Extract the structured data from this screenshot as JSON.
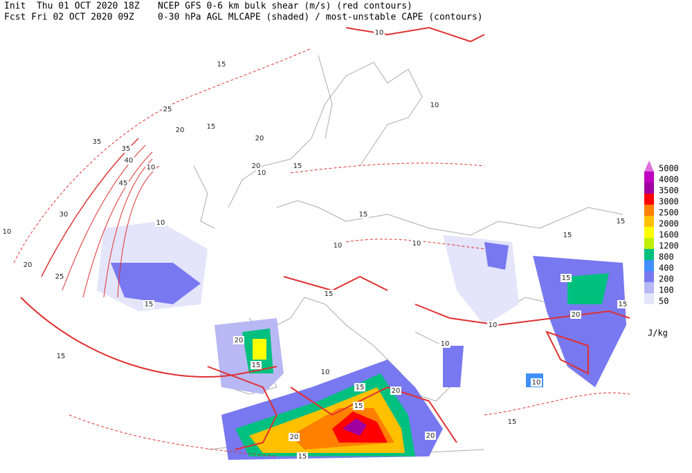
{
  "header": {
    "init": "Init  Thu 01 OCT 2020 18Z",
    "fcst": "Fcst Fri 02 OCT 2020 09Z",
    "line1": "NCEP GFS 0-6 km bulk shear (m/s) (red contours)",
    "line2": "0-30 hPa AGL MLCAPE (shaded) / most-unstable CAPE (contours)"
  },
  "legend": {
    "unit": "J/kg",
    "items": [
      {
        "label": 5000,
        "color": "#e070e0"
      },
      {
        "label": 4000,
        "color": "#c000c0"
      },
      {
        "label": 3500,
        "color": "#a000a0"
      },
      {
        "label": 3000,
        "color": "#ff0000"
      },
      {
        "label": 2500,
        "color": "#ff8000"
      },
      {
        "label": 2000,
        "color": "#ffc000"
      },
      {
        "label": 1600,
        "color": "#ffff00"
      },
      {
        "label": 1200,
        "color": "#c0f000"
      },
      {
        "label": 800,
        "color": "#00c080"
      },
      {
        "label": 400,
        "color": "#4090ff"
      },
      {
        "label": 200,
        "color": "#7878f0"
      },
      {
        "label": 100,
        "color": "#b8b8f4"
      },
      {
        "label": 50,
        "color": "#e4e4fa"
      }
    ]
  },
  "contour_labels": [
    15,
    25,
    20,
    15,
    35,
    35,
    40,
    45,
    30,
    10,
    20,
    25,
    15,
    10,
    10,
    15,
    20,
    20,
    15,
    10,
    10,
    10,
    15,
    15,
    10,
    15,
    20,
    15,
    15,
    20,
    15,
    10,
    15,
    20,
    20,
    15,
    10,
    10,
    15,
    20,
    15,
    10,
    15,
    10
  ]
}
